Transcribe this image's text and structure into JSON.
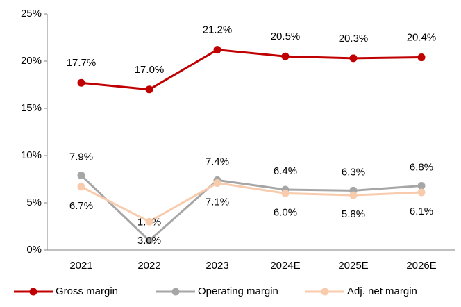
{
  "chart_data": {
    "type": "line",
    "categories": [
      "2021",
      "2022",
      "2023",
      "2024E",
      "2025E",
      "2026E"
    ],
    "series": [
      {
        "name": "Gross margin",
        "color": "#c00000",
        "values": [
          17.7,
          17.0,
          21.2,
          20.5,
          20.3,
          20.4
        ],
        "value_labels": [
          "17.7%",
          "17.0%",
          "21.2%",
          "20.5%",
          "20.3%",
          "20.4%"
        ]
      },
      {
        "name": "Operating margin",
        "color": "#a6a6a6",
        "values": [
          7.9,
          1.0,
          7.4,
          6.4,
          6.3,
          6.8
        ],
        "value_labels": [
          "7.9%",
          "1.0%",
          "7.4%",
          "6.4%",
          "6.3%",
          "6.8%"
        ]
      },
      {
        "name": "Adj. net margin",
        "color": "#f8cbad",
        "values": [
          6.7,
          3.0,
          7.1,
          6.0,
          5.8,
          6.1
        ],
        "value_labels": [
          "6.7%",
          "3.0%",
          "7.1%",
          "6.0%",
          "5.8%",
          "6.1%"
        ]
      }
    ],
    "ylim": [
      0,
      25
    ],
    "yticks": [
      {
        "value": 0,
        "label": "0%"
      },
      {
        "value": 5,
        "label": "5%"
      },
      {
        "value": 10,
        "label": "10%"
      },
      {
        "value": 15,
        "label": "15%"
      },
      {
        "value": 20,
        "label": "20%"
      },
      {
        "value": 25,
        "label": "25%"
      }
    ],
    "grid": false,
    "legend": "bottom"
  }
}
